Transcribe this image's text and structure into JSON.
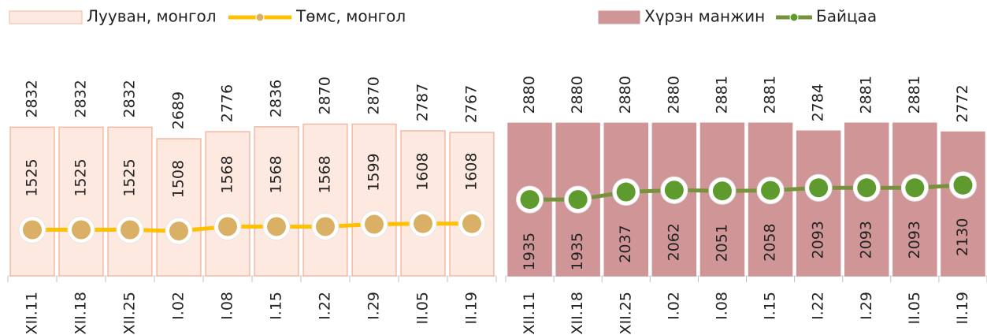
{
  "chart_data": [
    {
      "type": "combo",
      "categories": [
        "XII.11",
        "XII.18",
        "XII.25",
        "I.02",
        "I.08",
        "I.15",
        "I.22",
        "I.29",
        "II.05",
        "II.19"
      ],
      "series": [
        {
          "name": "Лууван, монгол",
          "type": "bar",
          "color": "#fde9df",
          "stroke": "#f2b9a6",
          "values": [
            2832,
            2832,
            2832,
            2689,
            2776,
            2836,
            2870,
            2870,
            2787,
            2767
          ]
        },
        {
          "name": "Төмс, монгол",
          "type": "line",
          "axis": "y2",
          "color": "#ffc000",
          "marker": "#d9b065",
          "values": [
            1525,
            1525,
            1525,
            1508,
            1568,
            1568,
            1568,
            1599,
            1608,
            1608
          ]
        }
      ],
      "ylim": [
        1000,
        3000
      ],
      "y2lim": [
        900,
        3100
      ]
    },
    {
      "type": "combo",
      "categories": [
        "XII.11",
        "XII.18",
        "XII.25",
        "I.02",
        "I.08",
        "I.15",
        "I.22",
        "I.29",
        "II.05",
        "II.19"
      ],
      "series": [
        {
          "name": "Хүрэн манжин",
          "type": "bar",
          "color": "#d09697",
          "stroke": "#d09697",
          "values": [
            2880,
            2880,
            2880,
            2880,
            2881,
            2881,
            2784,
            2881,
            2881,
            2772
          ]
        },
        {
          "name": "Байцаа",
          "type": "line",
          "axis": "y2",
          "color": "#76923c",
          "marker": "#5f9a2e",
          "values": [
            1935,
            1935,
            2037,
            2062,
            2051,
            2058,
            2093,
            2093,
            2093,
            2130
          ]
        }
      ],
      "ylim": [
        1000,
        3000
      ],
      "y2lim": [
        900,
        3100
      ]
    }
  ]
}
